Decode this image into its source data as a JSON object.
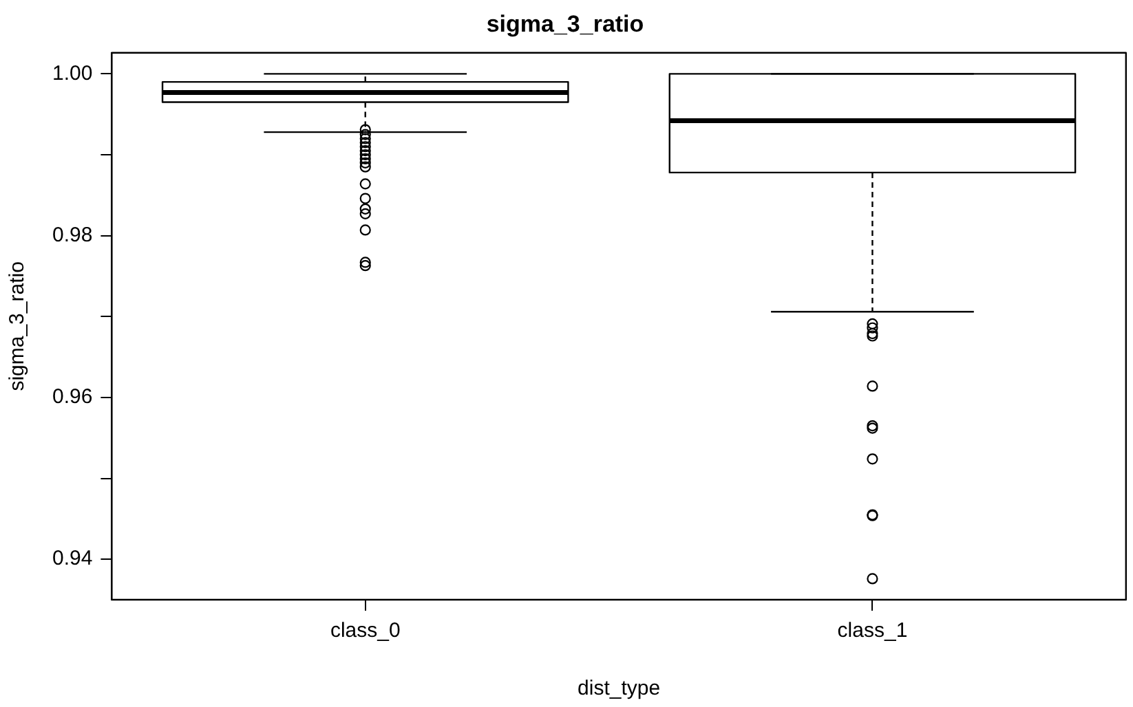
{
  "chart_data": {
    "type": "box",
    "title": "sigma_3_ratio",
    "xlabel": "dist_type",
    "ylabel": "sigma_3_ratio",
    "categories": [
      "class_0",
      "class_1"
    ],
    "boxes": [
      {
        "low": 0.9928,
        "q1": 0.9965,
        "median": 0.9977,
        "q3": 0.999,
        "high": 1.0,
        "outliers": [
          0.9931,
          0.9925,
          0.992,
          0.9915,
          0.991,
          0.9905,
          0.99,
          0.9895,
          0.989,
          0.9885,
          0.9864,
          0.9846,
          0.9833,
          0.9827,
          0.9807,
          0.9767,
          0.9763
        ]
      },
      {
        "low": 0.9706,
        "q1": 0.9878,
        "median": 0.9942,
        "q3": 1.0,
        "high": 1.0,
        "outliers": [
          0.9691,
          0.9686,
          0.9679,
          0.9676,
          0.9614,
          0.9565,
          0.9562,
          0.9524,
          0.9455,
          0.9454,
          0.9376
        ]
      }
    ],
    "color": "#000000",
    "ylim": [
      0.935,
      1.0026
    ],
    "yticks": [
      0.94,
      {
        "value": 0.95,
        "label": null
      },
      0.96,
      {
        "value": 0.97,
        "label": null
      },
      0.98,
      {
        "value": 0.99,
        "label": null
      },
      {
        "value": 1.0,
        "label": "1.00"
      }
    ],
    "grid": false,
    "legend": false
  }
}
